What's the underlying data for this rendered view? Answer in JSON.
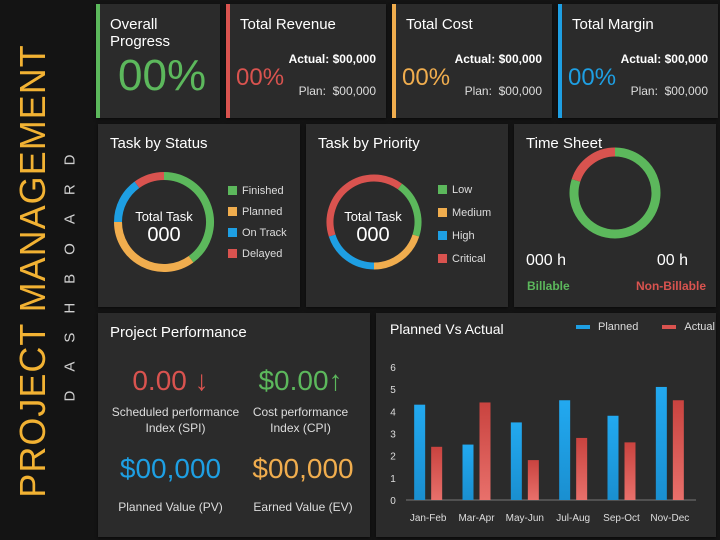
{
  "sidebar": {
    "title": "PROJECT MANAGEMENT",
    "subtitle": "DASHBOARD"
  },
  "colors": {
    "green": "#5cb85c",
    "red": "#d9534f",
    "amber": "#f0ad4e",
    "blue": "#1e9fe3"
  },
  "kpis": {
    "progress": {
      "title": "Overall Progress",
      "value": "00%"
    },
    "revenue": {
      "title": "Total Revenue",
      "pct": "00%",
      "actual_label": "Actual:",
      "actual": "$00,000",
      "plan_label": "Plan:",
      "plan": "$00,000"
    },
    "cost": {
      "title": "Total Cost",
      "pct": "00%",
      "actual_label": "Actual:",
      "actual": "$00,000",
      "plan_label": "Plan:",
      "plan": "$00,000"
    },
    "margin": {
      "title": "Total Margin",
      "pct": "00%",
      "actual_label": "Actual:",
      "actual": "$00,000",
      "plan_label": "Plan:",
      "plan": "$00,000"
    }
  },
  "status": {
    "title": "Task by Status",
    "center_label": "Total Task",
    "center_value": "000",
    "legend": [
      "Finished",
      "Planned",
      "On Track",
      "Delayed"
    ],
    "values": [
      40,
      35,
      15,
      10
    ]
  },
  "priority": {
    "title": "Task by Priority",
    "center_label": "Total Task",
    "center_value": "000",
    "legend": [
      "Low",
      "Medium",
      "High",
      "Critical"
    ],
    "values": [
      20,
      20,
      20,
      40
    ]
  },
  "timesheet": {
    "title": "Time Sheet",
    "billable_value": "000 h",
    "billable_label": "Billable",
    "nonbillable_value": "00 h",
    "nonbillable_label": "Non-Billable",
    "values": [
      80,
      20
    ]
  },
  "performance": {
    "title": "Project Performance",
    "spi_value": "0.00",
    "spi_arrow": "↓",
    "spi_label_1": "Scheduled performance",
    "spi_label_2": "Index (SPI)",
    "cpi_value": "$0.00",
    "cpi_arrow": "↑",
    "cpi_label_1": "Cost performance",
    "cpi_label_2": "Index (CPI)",
    "pv_value": "$00,000",
    "pv_label": "Planned Value (PV)",
    "ev_value": "$00,000",
    "ev_label": "Earned Value (EV)"
  },
  "chart_data": {
    "type": "bar",
    "title": "Planned Vs Actual",
    "categories": [
      "Jan-Feb",
      "Mar-Apr",
      "May-Jun",
      "Jul-Aug",
      "Sep-Oct",
      "Nov-Dec"
    ],
    "series": [
      {
        "name": "Planned",
        "color": "#1e9fe3",
        "values": [
          4.3,
          2.5,
          3.5,
          4.5,
          3.8,
          5.1
        ]
      },
      {
        "name": "Actual",
        "color": "#d9534f",
        "values": [
          2.4,
          4.4,
          1.8,
          2.8,
          2.6,
          4.5
        ]
      }
    ],
    "ylim": [
      0,
      6
    ],
    "yticks": [
      0,
      1,
      2,
      3,
      4,
      5,
      6
    ],
    "legend_position": "top-right",
    "grid": false
  }
}
